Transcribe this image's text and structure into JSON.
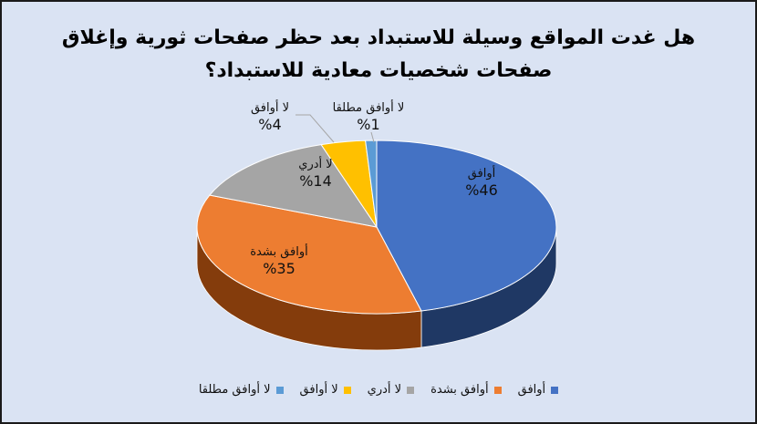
{
  "chart_data": {
    "type": "pie",
    "title": "هل غدت المواقع وسيلة للاستبداد بعد حظر صفحات ثورية وإغلاق صفحات شخصيات معادية للاستبداد؟",
    "categories": [
      "أوافق",
      "أوافق بشدة",
      "لا أدري",
      "لا أوافق",
      "لا أوافق مطلقا"
    ],
    "values": [
      46,
      35,
      14,
      4,
      1
    ],
    "data_labels": [
      "%46",
      "%35",
      "%14",
      "%4",
      "%1"
    ],
    "colors": [
      "#4472c4",
      "#ed7d31",
      "#a5a5a5",
      "#ffc000",
      "#5b9bd5"
    ],
    "side_colors": [
      "#1f3864",
      "#843c0c",
      "#7f7f7f",
      "#bf9000",
      "#2e75b6"
    ],
    "style": "3d",
    "legend": "bottom",
    "legend_labels": [
      "أوافق",
      "أوافق بشدة",
      "لا أدري",
      "لا أوافق",
      "لا أوافق مطلقا"
    ]
  }
}
